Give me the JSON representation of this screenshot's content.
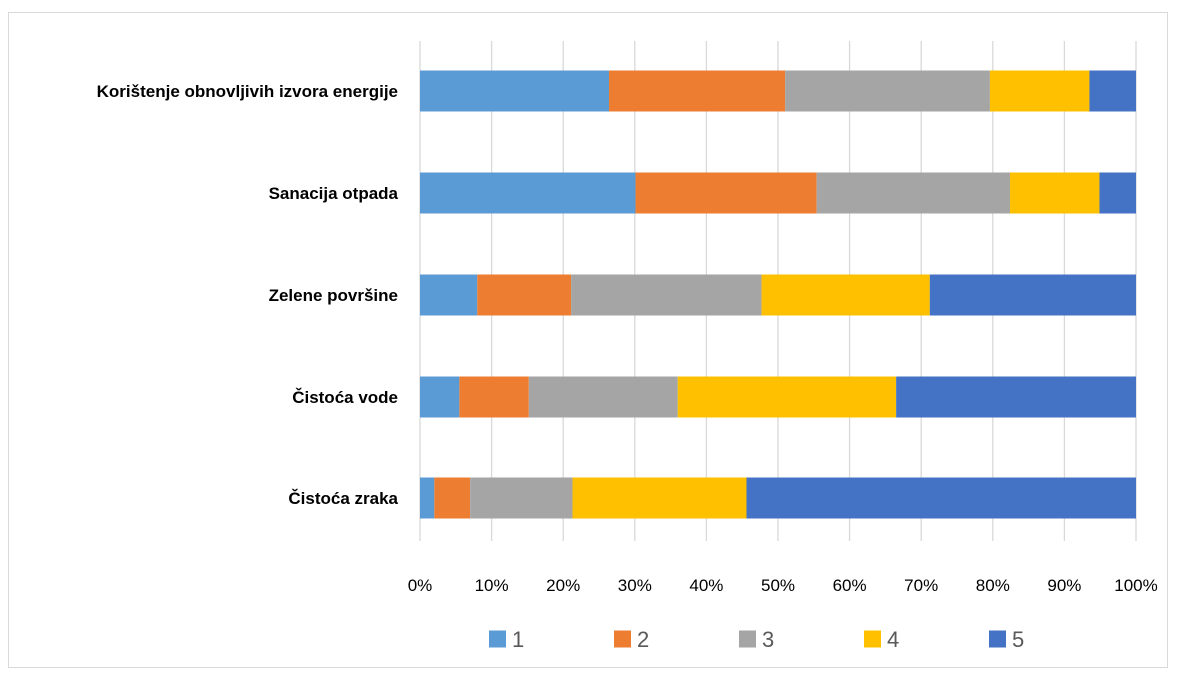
{
  "chart_data": {
    "type": "bar",
    "orientation": "horizontal",
    "stacked": "percent",
    "categories": [
      "Korištenje obnovljivih izvora energije",
      "Sanacija otpada",
      "Zelene površine",
      "Čistoća vode",
      "Čistoća zraka"
    ],
    "series": [
      {
        "name": "1",
        "color": "#5b9bd5",
        "values": [
          26.4,
          30.1,
          8.0,
          5.5,
          2.0
        ]
      },
      {
        "name": "2",
        "color": "#ed7d31",
        "values": [
          24.6,
          25.3,
          13.1,
          9.7,
          5.0
        ]
      },
      {
        "name": "3",
        "color": "#a5a5a5",
        "values": [
          28.6,
          27.0,
          26.6,
          20.8,
          14.3
        ]
      },
      {
        "name": "4",
        "color": "#ffc000",
        "values": [
          13.9,
          12.5,
          23.5,
          30.5,
          24.3
        ]
      },
      {
        "name": "5",
        "color": "#4472c4",
        "values": [
          6.5,
          5.1,
          28.8,
          33.5,
          54.4
        ]
      }
    ],
    "xlim": [
      0,
      100
    ],
    "xticks": [
      "0%",
      "10%",
      "20%",
      "30%",
      "40%",
      "50%",
      "60%",
      "70%",
      "80%",
      "90%",
      "100%"
    ],
    "grid": true,
    "legend_position": "bottom",
    "title": "",
    "xlabel": "",
    "ylabel": ""
  }
}
